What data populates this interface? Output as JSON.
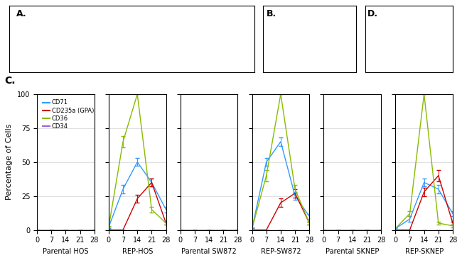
{
  "chart_data": [
    {
      "type": "line",
      "xlabel": "Parental HOS",
      "ylabel": "Percentage of Cells",
      "x": [
        0,
        7,
        14,
        21,
        28
      ],
      "xlim": [
        0,
        28
      ],
      "xticks": [
        0,
        7,
        14,
        21,
        28
      ],
      "ylim": [
        0,
        100
      ],
      "yticks": [
        0,
        25,
        50,
        75,
        100
      ],
      "grid": true,
      "legend": "upper left",
      "annotations": [
        "A.",
        "B.",
        "C.",
        "D."
      ],
      "series": [
        {
          "name": "CD71",
          "color": "#3399FF",
          "values": [
            0,
            0,
            0,
            0,
            0
          ],
          "errors": [
            0,
            0,
            0,
            0,
            0
          ]
        },
        {
          "name": "CD235a (GPA)",
          "color": "#CC0000",
          "values": [
            0,
            0,
            0,
            0,
            0
          ],
          "errors": [
            0,
            0,
            0,
            0,
            0
          ]
        },
        {
          "name": "CD36",
          "color": "#88BB00",
          "values": [
            0,
            0,
            0,
            0,
            0
          ],
          "errors": [
            0,
            0,
            0,
            0,
            0
          ]
        },
        {
          "name": "CD34",
          "color": "#9966CC",
          "values": [
            0,
            0,
            0,
            0,
            0
          ],
          "errors": [
            0,
            0,
            0,
            0,
            0
          ]
        }
      ]
    },
    {
      "type": "line",
      "xlabel": "REP-HOS",
      "x": [
        0,
        7,
        14,
        21,
        28
      ],
      "xlim": [
        0,
        28
      ],
      "xticks": [
        0,
        7,
        14,
        21,
        28
      ],
      "ylim": [
        0,
        100
      ],
      "yticks": [
        0,
        25,
        50,
        75,
        100
      ],
      "grid": true,
      "series": [
        {
          "name": "CD71",
          "color": "#3399FF",
          "values": [
            2,
            30,
            50,
            35,
            15
          ],
          "errors": [
            0.5,
            3,
            3,
            3,
            2
          ]
        },
        {
          "name": "CD235a (GPA)",
          "color": "#CC0000",
          "values": [
            0,
            0,
            23,
            35,
            5
          ],
          "errors": [
            0,
            0,
            3,
            3,
            1
          ]
        },
        {
          "name": "CD36",
          "color": "#88BB00",
          "values": [
            2,
            65,
            100,
            15,
            5
          ],
          "errors": [
            1,
            4,
            0,
            2,
            1
          ]
        },
        {
          "name": "CD34",
          "color": "#9966CC",
          "values": [
            0,
            0,
            0,
            0,
            0
          ],
          "errors": [
            0,
            0,
            0,
            0,
            0
          ]
        }
      ]
    },
    {
      "type": "line",
      "xlabel": "Parental SW872",
      "x": [
        0,
        7,
        14,
        21,
        28
      ],
      "xlim": [
        0,
        28
      ],
      "xticks": [
        0,
        7,
        14,
        21,
        28
      ],
      "ylim": [
        0,
        100
      ],
      "yticks": [
        0,
        25,
        50,
        75,
        100
      ],
      "grid": true,
      "series": [
        {
          "name": "CD71",
          "color": "#3399FF",
          "values": [
            0,
            0,
            0,
            0,
            0
          ],
          "errors": [
            0,
            0,
            0,
            0,
            0
          ]
        },
        {
          "name": "CD235a (GPA)",
          "color": "#CC0000",
          "values": [
            0,
            0,
            0,
            0,
            0
          ],
          "errors": [
            0,
            0,
            0,
            0,
            0
          ]
        },
        {
          "name": "CD36",
          "color": "#88BB00",
          "values": [
            0,
            0,
            0,
            0,
            0
          ],
          "errors": [
            0,
            0,
            0,
            0,
            0
          ]
        },
        {
          "name": "CD34",
          "color": "#9966CC",
          "values": [
            0,
            0,
            0,
            0,
            0
          ],
          "errors": [
            0,
            0,
            0,
            0,
            0
          ]
        }
      ]
    },
    {
      "type": "line",
      "xlabel": "REP-SW872",
      "x": [
        0,
        7,
        14,
        21,
        28
      ],
      "xlim": [
        0,
        28
      ],
      "xticks": [
        0,
        7,
        14,
        21,
        28
      ],
      "ylim": [
        0,
        100
      ],
      "yticks": [
        0,
        25,
        50,
        75,
        100
      ],
      "grid": true,
      "series": [
        {
          "name": "CD71",
          "color": "#3399FF",
          "values": [
            1,
            50,
            65,
            25,
            10
          ],
          "errors": [
            0.5,
            3,
            3,
            3,
            2
          ]
        },
        {
          "name": "CD235a (GPA)",
          "color": "#CC0000",
          "values": [
            0,
            0,
            20,
            27,
            5
          ],
          "errors": [
            0,
            0,
            3,
            3,
            1
          ]
        },
        {
          "name": "CD36",
          "color": "#88BB00",
          "values": [
            1,
            40,
            100,
            30,
            5
          ],
          "errors": [
            1,
            4,
            0,
            3,
            1
          ]
        },
        {
          "name": "CD34",
          "color": "#9966CC",
          "values": [
            0,
            0,
            0,
            0,
            0
          ],
          "errors": [
            0,
            0,
            0,
            0,
            0
          ]
        }
      ]
    },
    {
      "type": "line",
      "xlabel": "Parental SKNEP",
      "x": [
        0,
        7,
        14,
        21,
        28
      ],
      "xlim": [
        0,
        28
      ],
      "xticks": [
        0,
        7,
        14,
        21,
        28
      ],
      "ylim": [
        0,
        100
      ],
      "yticks": [
        0,
        25,
        50,
        75,
        100
      ],
      "grid": true,
      "series": [
        {
          "name": "CD71",
          "color": "#3399FF",
          "values": [
            0,
            0,
            0,
            0,
            0
          ],
          "errors": [
            0,
            0,
            0,
            0,
            0
          ]
        },
        {
          "name": "CD235a (GPA)",
          "color": "#CC0000",
          "values": [
            0,
            0,
            0,
            0,
            0
          ],
          "errors": [
            0,
            0,
            0,
            0,
            0
          ]
        },
        {
          "name": "CD36",
          "color": "#88BB00",
          "values": [
            0,
            0,
            0,
            0,
            0
          ],
          "errors": [
            0,
            0,
            0,
            0,
            0
          ]
        },
        {
          "name": "CD34",
          "color": "#9966CC",
          "values": [
            0,
            0,
            0,
            0,
            0
          ],
          "errors": [
            0,
            0,
            0,
            0,
            0
          ]
        }
      ]
    },
    {
      "type": "line",
      "xlabel": "REP-SKNEP",
      "x": [
        0,
        7,
        14,
        21,
        28
      ],
      "xlim": [
        0,
        28
      ],
      "xticks": [
        0,
        7,
        14,
        21,
        28
      ],
      "ylim": [
        0,
        100
      ],
      "yticks": [
        0,
        25,
        50,
        75,
        100
      ],
      "grid": true,
      "series": [
        {
          "name": "CD71",
          "color": "#3399FF",
          "values": [
            1,
            8,
            35,
            30,
            12
          ],
          "errors": [
            0.5,
            2,
            3,
            3,
            2
          ]
        },
        {
          "name": "CD235a (GPA)",
          "color": "#CC0000",
          "values": [
            0,
            0,
            28,
            40,
            5
          ],
          "errors": [
            0,
            0,
            3,
            4,
            1
          ]
        },
        {
          "name": "CD36",
          "color": "#88BB00",
          "values": [
            1,
            12,
            100,
            5,
            3
          ],
          "errors": [
            1,
            2,
            0,
            1,
            1
          ]
        },
        {
          "name": "CD34",
          "color": "#9966CC",
          "values": [
            0,
            0,
            0,
            0,
            0
          ],
          "errors": [
            0,
            0,
            0,
            0,
            0
          ]
        }
      ]
    }
  ]
}
